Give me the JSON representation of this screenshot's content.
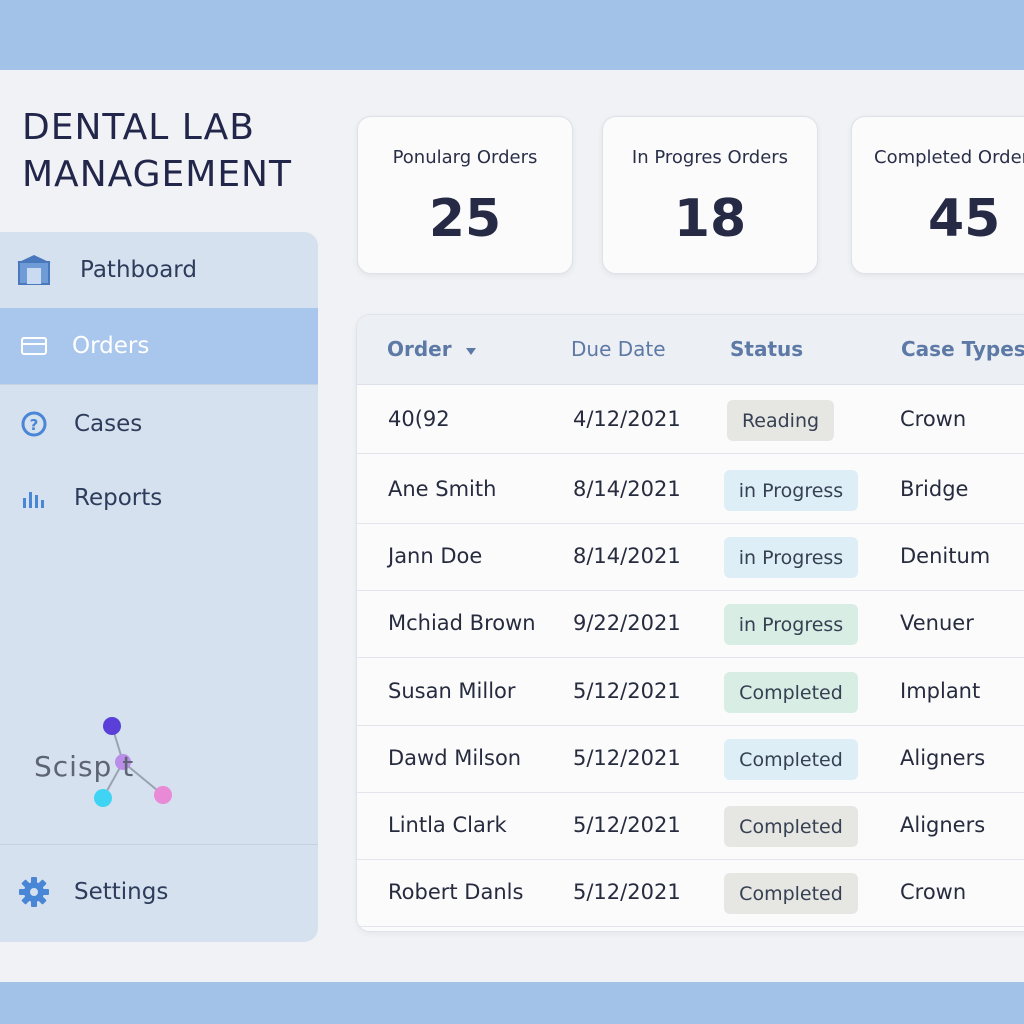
{
  "app": {
    "title": "DENTAL LAB MANAGEMENT"
  },
  "sidebar": {
    "items": [
      {
        "label": "Pathboard",
        "icon": "building-icon"
      },
      {
        "label": "Orders",
        "icon": "card-icon",
        "active": true
      },
      {
        "label": "Cases",
        "icon": "question-circle-icon"
      },
      {
        "label": "Reports",
        "icon": "bar-chart-icon"
      }
    ],
    "settings": {
      "label": "Settings",
      "icon": "gear-icon"
    },
    "logo": {
      "text": "Scisp t"
    }
  },
  "stats": [
    {
      "label": "Ponularg Orders",
      "value": "25"
    },
    {
      "label": "In Progres Orders",
      "value": "18"
    },
    {
      "label": "Completed Orders",
      "value": "45"
    }
  ],
  "table": {
    "headers": {
      "order": "Order",
      "due_date": "Due Date",
      "status": "Status",
      "case_types": "Case Types"
    },
    "rows": [
      {
        "order": "40(92",
        "due": "4/12/2021",
        "status": "Reading",
        "status_kind": "grey",
        "case": "Crown"
      },
      {
        "order": "Ane Smith",
        "due": "8/14/2021",
        "status": "in Progress",
        "status_kind": "blue",
        "case": "Bridge"
      },
      {
        "order": "Jann Doe",
        "due": "8/14/2021",
        "status": "in Progress",
        "status_kind": "blue",
        "case": "Denitum"
      },
      {
        "order": "Mchiad Brown",
        "due": "9/22/2021",
        "status": "in Progress",
        "status_kind": "green",
        "case": "Venuer"
      },
      {
        "order": "Susan Millor",
        "due": "5/12/2021",
        "status": "Completed",
        "status_kind": "green",
        "case": "Implant"
      },
      {
        "order": "Dawd Milson",
        "due": "5/12/2021",
        "status": "Completed",
        "status_kind": "blue",
        "case": "Aligners"
      },
      {
        "order": "Lintla Clark",
        "due": "5/12/2021",
        "status": "Completed",
        "status_kind": "grey",
        "case": "Aligners"
      },
      {
        "order": "Robert Danls",
        "due": "5/12/2021",
        "status": "Completed",
        "status_kind": "grey",
        "case": "Crown"
      }
    ]
  },
  "colors": {
    "badge_grey": "#e6e6e2",
    "badge_blue": "#ddeef6",
    "badge_green": "#d8ede4",
    "active_nav": "#a9c6ec",
    "icon_blue": "#4a86d6"
  }
}
